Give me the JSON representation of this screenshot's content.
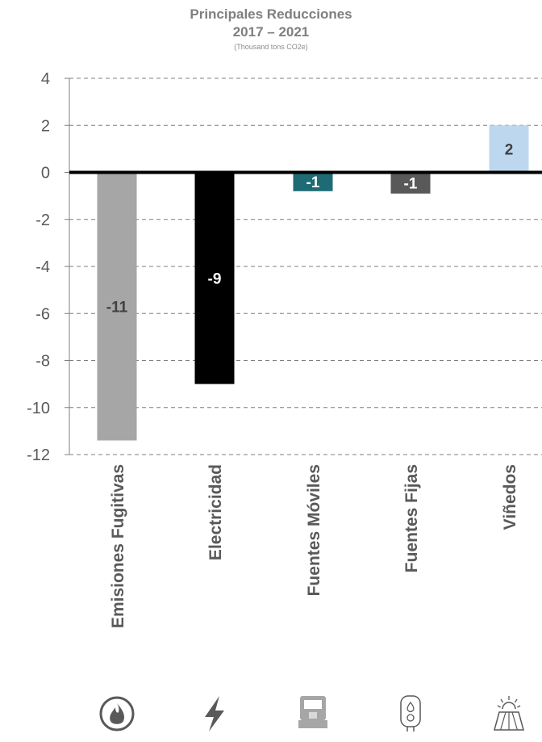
{
  "chart_data": {
    "type": "bar",
    "title": "Principales Reducciones",
    "subtitle": "2017 – 2021",
    "unit_note": "(Thousand tons CO2e)",
    "categories": [
      "Emisiones Fugitivas",
      "Electricidad",
      "Fuentes Móviles",
      "Fuentes Fijas",
      "Viñedos"
    ],
    "values": [
      -11.4,
      -9.0,
      -0.8,
      -0.9,
      2.0
    ],
    "data_labels": [
      "-11",
      "-9",
      "-1",
      "-1",
      "2"
    ],
    "bar_colors": [
      "#a6a6a6",
      "#000000",
      "#1f6b75",
      "#595959",
      "#bdd7ee"
    ],
    "label_colors": [
      "#404040",
      "#ffffff",
      "#ffffff",
      "#ffffff",
      "#404040"
    ],
    "icons": [
      "fire-icon",
      "lightning-bolt-icon",
      "truck-icon",
      "water-heater-icon",
      "vineyard-sun-icon"
    ],
    "yticks": [
      "4",
      "2",
      "0",
      "-2",
      "-4",
      "-6",
      "-8",
      "-10",
      "-12"
    ],
    "ylim": [
      -12,
      4
    ],
    "grid": true,
    "legend": "none"
  }
}
